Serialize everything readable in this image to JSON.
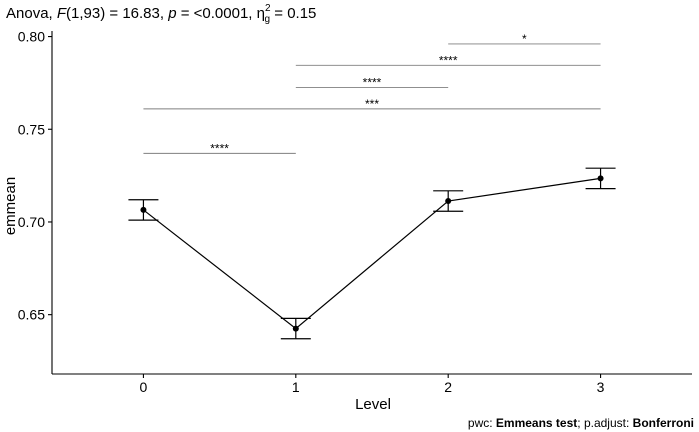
{
  "chart_data": {
    "type": "line",
    "title": {
      "prefix": "Anova, ",
      "f_symbol": "F",
      "f_args": "(1,93) = 16.83, ",
      "p_symbol": "p",
      "p_value": " = <0.0001, ",
      "eta_symbol": "η",
      "eta_sup": "2",
      "eta_sub": "g",
      "eta_value": " = 0.15"
    },
    "xlabel": "Level",
    "ylabel": "emmean",
    "x": [
      0,
      1,
      2,
      3
    ],
    "x_tick_labels": [
      "0",
      "1",
      "2",
      "3"
    ],
    "xlim": [
      -0.6,
      3.6
    ],
    "ylim": [
      0.618,
      0.803
    ],
    "y_ticks": [
      0.65,
      0.7,
      0.75,
      0.8
    ],
    "y_tick_labels": [
      "0.65",
      "0.70",
      "0.75",
      "0.80"
    ],
    "series": [
      {
        "values": [
          0.7065,
          0.6425,
          0.7113,
          0.7235
        ],
        "lower": [
          0.701,
          0.637,
          0.7058,
          0.718
        ],
        "upper": [
          0.712,
          0.648,
          0.7168,
          0.729
        ]
      }
    ],
    "comparisons": [
      {
        "from": 2,
        "to": 3,
        "y": 0.796,
        "label": "*"
      },
      {
        "from": 1,
        "to": 3,
        "y": 0.7845,
        "label": "****"
      },
      {
        "from": 1,
        "to": 2,
        "y": 0.7725,
        "label": "****"
      },
      {
        "from": 0,
        "to": 3,
        "y": 0.761,
        "label": "***"
      },
      {
        "from": 0,
        "to": 1,
        "y": 0.737,
        "label": "****"
      }
    ],
    "grid": false,
    "colors": {
      "line": "#000000",
      "bracket": "#7f7f7f"
    },
    "caption": {
      "pwc_prefix": "pwc: ",
      "pwc_method": "Emmeans test",
      "adjust_prefix": "; p.adjust: ",
      "adjust_method": "Bonferroni"
    }
  }
}
